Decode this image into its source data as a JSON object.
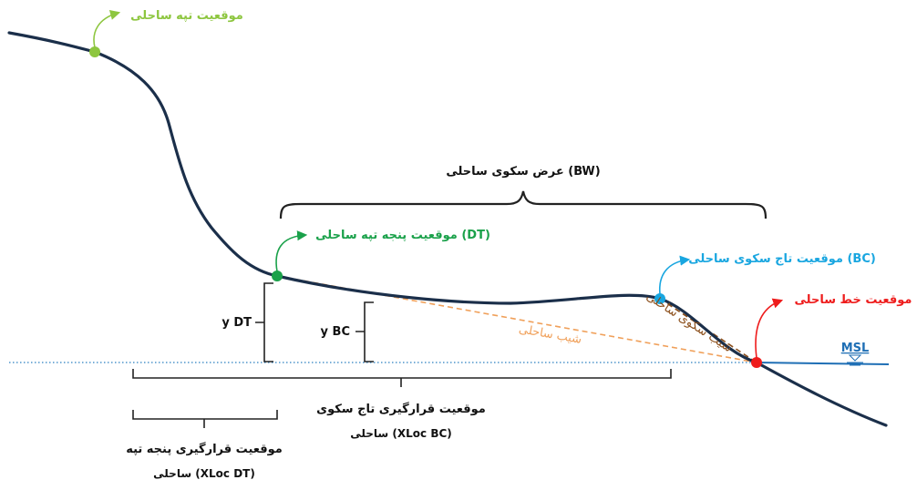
{
  "labels": {
    "dune_position": "موقعیت تپه ساحلی",
    "beach_width": "عرض سکوی ساحلی (BW)",
    "dune_toe_position": "موقعیت پنجه تپه ساحلی (DT)",
    "berm_crest_position": "موقعیت تاج سکوی ساحلی (BC)",
    "shoreline_position": "موقعیت خط ساحلی",
    "msl": "MSL",
    "y_dt": "y DT",
    "y_bc": "y BC",
    "beach_slope": "شیب ساحلی",
    "berm_slope": "شیب سکوی ساحلی",
    "xloc_bc_line1": "موقعیت قرارگیری تاج سکوی",
    "xloc_bc_line2": "ساحلی (XLoc BC)",
    "xloc_dt_line1": "موقعیت قرارگیری پنجه تپه",
    "xloc_dt_line2": "ساحلی  (XLoc DT)"
  },
  "colors": {
    "profile": "#1b2f4a",
    "dune_point": "#8dc63f",
    "dune_toe_point": "#1aa14a",
    "berm_crest_point": "#19a6e0",
    "shoreline_point": "#ee1c1c",
    "msl_line": "#1f6fb5",
    "beach_slope": "#f0a05a",
    "berm_slope": "#8b4e1a",
    "bracket": "#222222"
  }
}
